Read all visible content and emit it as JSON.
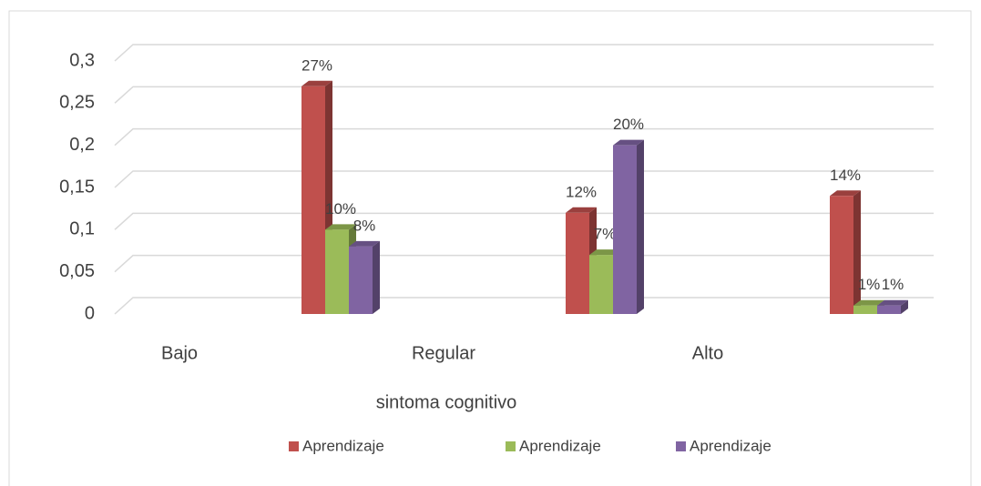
{
  "chart_data": {
    "type": "bar",
    "categories": [
      "Bajo",
      "Regular",
      "Alto"
    ],
    "series": [
      {
        "name": "Aprendizaje",
        "color": "#c0504d",
        "values": [
          0.27,
          0.12,
          0.14
        ],
        "value_labels": [
          "27%",
          "12%",
          "14%"
        ]
      },
      {
        "name": "Aprendizaje",
        "color": "#9bbb59",
        "values": [
          0.1,
          0.07,
          0.01
        ],
        "value_labels": [
          "10%",
          "7%",
          "1%"
        ]
      },
      {
        "name": "Aprendizaje",
        "color": "#8064a2",
        "values": [
          0.08,
          0.2,
          0.01
        ],
        "value_labels": [
          "8%",
          "20%",
          "1%"
        ]
      }
    ],
    "xlabel": "sintoma cognitivo",
    "ylim": [
      0,
      0.3
    ],
    "yticks": [
      0,
      {
        "value": 0.05,
        "label": "0,05"
      },
      {
        "value": 0.1,
        "label": "0,1"
      },
      {
        "value": 0.15,
        "label": "0,15"
      },
      {
        "value": 0.2,
        "label": "0,2"
      },
      {
        "value": 0.25,
        "label": "0,25"
      },
      {
        "value": 0.3,
        "label": "0,3"
      }
    ],
    "grid": true,
    "legend": "bottom"
  }
}
